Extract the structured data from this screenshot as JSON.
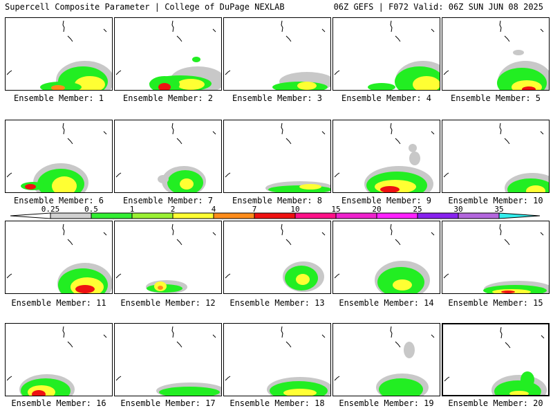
{
  "header": {
    "title": "Supercell Composite Parameter | College of DuPage NEXLAB",
    "run_info": "06Z GEFS | F072 Valid: 06Z SUN JUN 08 2025"
  },
  "panels": [
    {
      "label": "Ensemble Member: 1",
      "selected": false
    },
    {
      "label": "Ensemble Member: 2",
      "selected": false
    },
    {
      "label": "Ensemble Member: 3",
      "selected": false
    },
    {
      "label": "Ensemble Member: 4",
      "selected": false
    },
    {
      "label": "Ensemble Member: 5",
      "selected": false
    },
    {
      "label": "Ensemble Member: 6",
      "selected": false
    },
    {
      "label": "Ensemble Member: 7",
      "selected": false
    },
    {
      "label": "Ensemble Member: 8",
      "selected": false
    },
    {
      "label": "Ensemble Member: 9",
      "selected": false
    },
    {
      "label": "Ensemble Member: 10",
      "selected": false
    },
    {
      "label": "Ensemble Member: 11",
      "selected": false
    },
    {
      "label": "Ensemble Member: 12",
      "selected": false
    },
    {
      "label": "Ensemble Member: 13",
      "selected": false
    },
    {
      "label": "Ensemble Member: 14",
      "selected": false
    },
    {
      "label": "Ensemble Member: 15",
      "selected": false
    },
    {
      "label": "Ensemble Member: 16",
      "selected": false
    },
    {
      "label": "Ensemble Member: 17",
      "selected": false
    },
    {
      "label": "Ensemble Member: 18",
      "selected": false
    },
    {
      "label": "Ensemble Member: 19",
      "selected": false
    },
    {
      "label": "Ensemble Member: 20",
      "selected": true
    }
  ],
  "colorbar": {
    "thresholds": [
      "0.25",
      "0.5",
      "1",
      "2",
      "4",
      "7",
      "10",
      "15",
      "20",
      "25",
      "30",
      "35"
    ],
    "colors": [
      "#d0d0d0",
      "#33ee33",
      "#99f033",
      "#ffff33",
      "#ff8c1a",
      "#ee1111",
      "#ff1188",
      "#ee22cc",
      "#ff22ff",
      "#8822ee",
      "#b366dd",
      "#33eeee"
    ],
    "below_color": "#ffffff"
  },
  "field_colors": {
    "gray": "#c8c8c8",
    "green": "#22ee22",
    "lightgreen": "#99ee44",
    "yellow": "#ffff33",
    "orange": "#ff8c1a",
    "red": "#ee1111"
  }
}
